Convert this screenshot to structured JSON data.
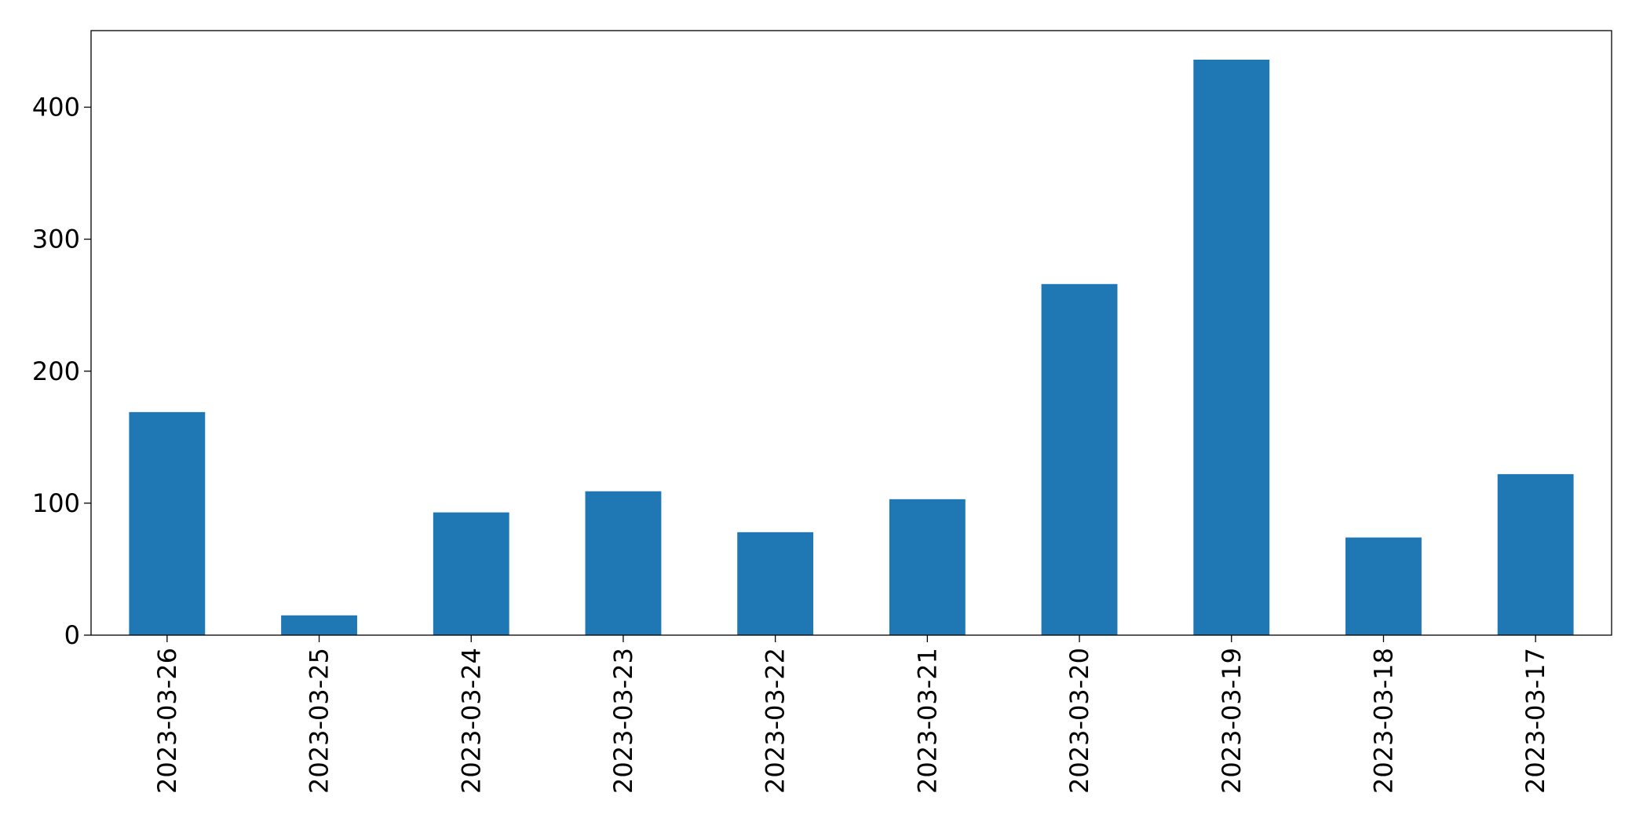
{
  "chart_data": {
    "type": "bar",
    "categories": [
      "2023-03-26",
      "2023-03-25",
      "2023-03-24",
      "2023-03-23",
      "2023-03-22",
      "2023-03-21",
      "2023-03-20",
      "2023-03-19",
      "2023-03-18",
      "2023-03-17"
    ],
    "values": [
      169,
      15,
      93,
      109,
      78,
      103,
      266,
      436,
      74,
      122
    ],
    "color": "#1f77b4",
    "ylim": [
      0,
      458
    ],
    "yticks": [
      0,
      100,
      200,
      300,
      400
    ],
    "grid": false
  }
}
